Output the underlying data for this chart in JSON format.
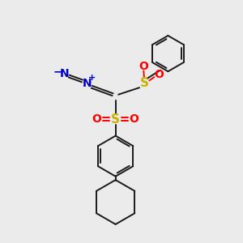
{
  "bg_color": "#ebebeb",
  "bond_color": "#1a1a1a",
  "sulfur_color": "#c8b400",
  "oxygen_color": "#ff0000",
  "nitrogen_color": "#0000cc",
  "lw": 1.4,
  "figsize": [
    3.0,
    3.0
  ],
  "dpi": 100,
  "xlim": [
    0,
    10
  ],
  "ylim": [
    0,
    10
  ]
}
